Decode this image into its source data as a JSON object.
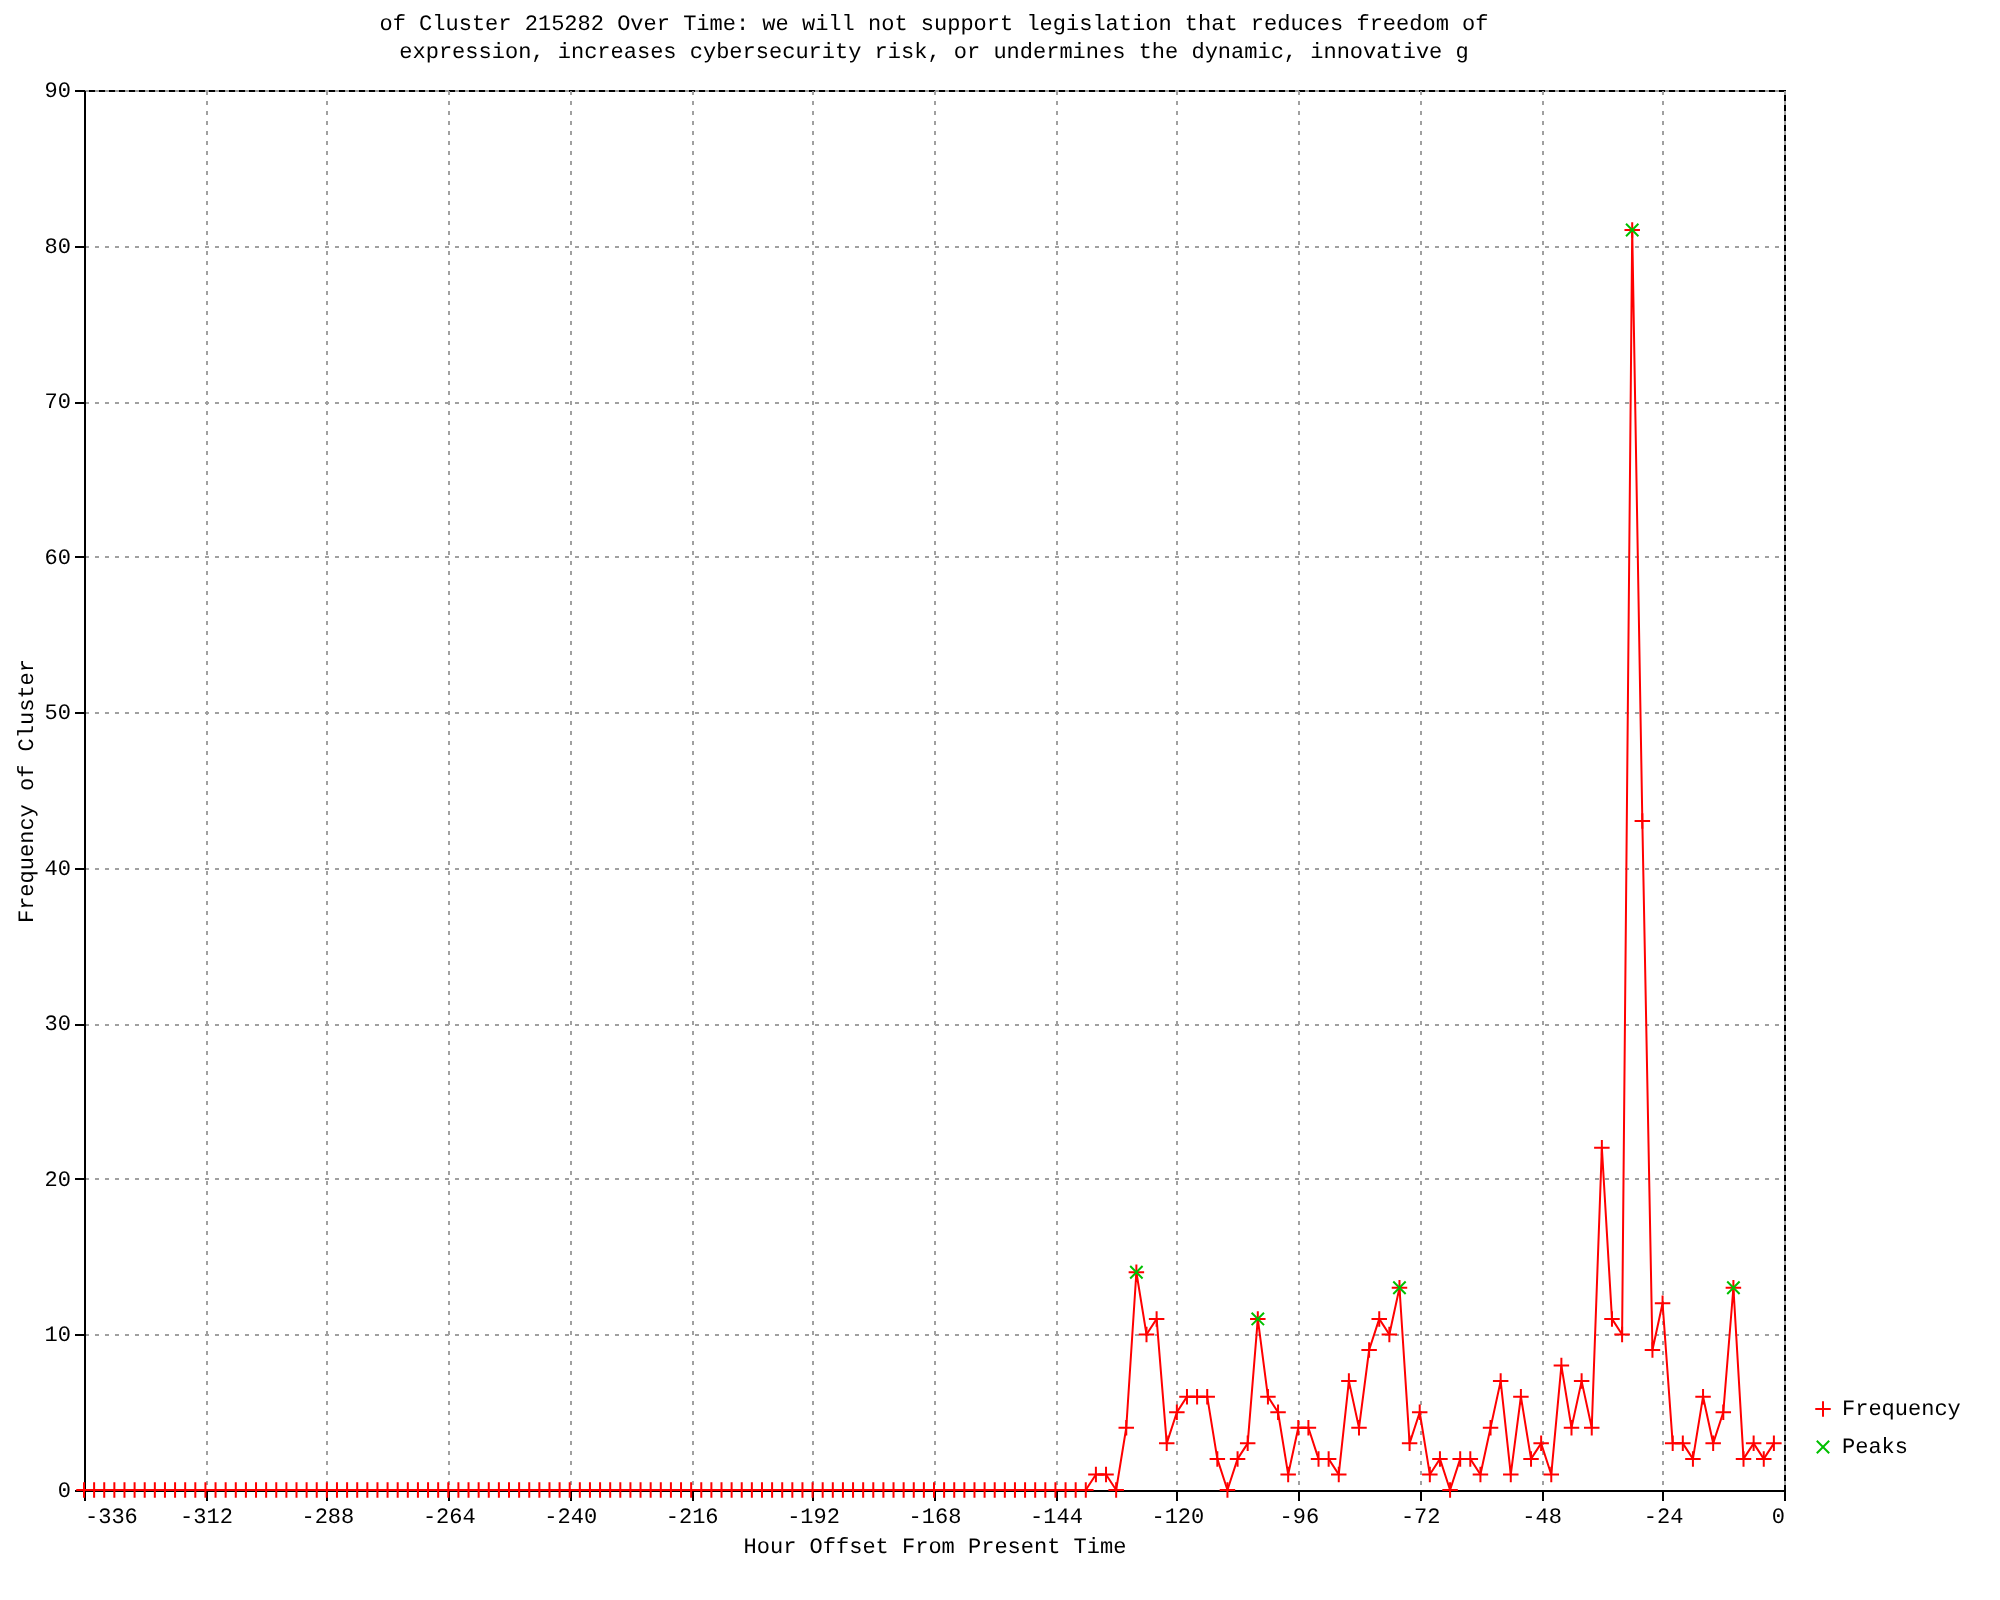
{
  "chart_data": {
    "type": "line",
    "title": "of Cluster 215282 Over Time: we will not support legislation that reduces freedom of expression, increases cybersecurity risk, or undermines the dynamic, innovative g",
    "xlabel": "Hour Offset From Present Time",
    "ylabel": "Frequency of Cluster",
    "x": [
      -336,
      -334,
      -332,
      -330,
      -328,
      -326,
      -324,
      -322,
      -320,
      -318,
      -316,
      -314,
      -312,
      -310,
      -308,
      -306,
      -304,
      -302,
      -300,
      -298,
      -296,
      -294,
      -292,
      -290,
      -288,
      -286,
      -284,
      -282,
      -280,
      -278,
      -276,
      -274,
      -272,
      -270,
      -268,
      -266,
      -264,
      -262,
      -260,
      -258,
      -256,
      -254,
      -252,
      -250,
      -248,
      -246,
      -244,
      -242,
      -240,
      -238,
      -236,
      -234,
      -232,
      -230,
      -228,
      -226,
      -224,
      -222,
      -220,
      -218,
      -216,
      -214,
      -212,
      -210,
      -208,
      -206,
      -204,
      -202,
      -200,
      -198,
      -196,
      -194,
      -192,
      -190,
      -188,
      -186,
      -184,
      -182,
      -180,
      -178,
      -176,
      -174,
      -172,
      -170,
      -168,
      -166,
      -164,
      -162,
      -160,
      -158,
      -156,
      -154,
      -152,
      -150,
      -148,
      -146,
      -144,
      -142,
      -140,
      -138,
      -136,
      -134,
      -132,
      -130,
      -128,
      -126,
      -124,
      -122,
      -120,
      -118,
      -116,
      -114,
      -112,
      -110,
      -108,
      -106,
      -104,
      -102,
      -100,
      -98,
      -96,
      -94,
      -92,
      -90,
      -88,
      -86,
      -84,
      -82,
      -80,
      -78,
      -76,
      -74,
      -72,
      -70,
      -68,
      -66,
      -64,
      -62,
      -60,
      -58,
      -56,
      -54,
      -52,
      -50,
      -48,
      -46,
      -44,
      -42,
      -40,
      -38,
      -36,
      -34,
      -32,
      -30,
      -28,
      -26,
      -24,
      -22,
      -20,
      -18,
      -16,
      -14,
      -12,
      -10,
      -8,
      -6,
      -4,
      -2
    ],
    "series": [
      {
        "name": "Frequency",
        "color": "#ff0000",
        "values": [
          0,
          0,
          0,
          0,
          0,
          0,
          0,
          0,
          0,
          0,
          0,
          0,
          0,
          0,
          0,
          0,
          0,
          0,
          0,
          0,
          0,
          0,
          0,
          0,
          0,
          0,
          0,
          0,
          0,
          0,
          0,
          0,
          0,
          0,
          0,
          0,
          0,
          0,
          0,
          0,
          0,
          0,
          0,
          0,
          0,
          0,
          0,
          0,
          0,
          0,
          0,
          0,
          0,
          0,
          0,
          0,
          0,
          0,
          0,
          0,
          0,
          0,
          0,
          0,
          0,
          0,
          0,
          0,
          0,
          0,
          0,
          0,
          0,
          0,
          0,
          0,
          0,
          0,
          0,
          0,
          0,
          0,
          0,
          0,
          0,
          0,
          0,
          0,
          0,
          0,
          0,
          0,
          0,
          0,
          0,
          0,
          0,
          0,
          0,
          0,
          1,
          1,
          0,
          4,
          14,
          10,
          11,
          3,
          5,
          6,
          6,
          6,
          2,
          0,
          2,
          3,
          11,
          6,
          5,
          1,
          4,
          4,
          2,
          2,
          1,
          7,
          4,
          9,
          11,
          10,
          13,
          3,
          5,
          1,
          2,
          0,
          2,
          2,
          1,
          4,
          7,
          1,
          6,
          2,
          3,
          1,
          8,
          4,
          7,
          4,
          22,
          11,
          10,
          81,
          43,
          9,
          12,
          3,
          3,
          2,
          6,
          3,
          5,
          13,
          2,
          3,
          2,
          3
        ]
      },
      {
        "name": "Peaks",
        "type": "scatter",
        "color": "#00c000",
        "x": [
          -128,
          -104,
          -76,
          -30,
          -10
        ],
        "values": [
          14,
          11,
          13,
          81,
          13
        ]
      }
    ],
    "xlim": [
      -336,
      0
    ],
    "xticks": [
      -336,
      -312,
      -288,
      -264,
      -240,
      -216,
      -192,
      -168,
      -144,
      -120,
      -96,
      -72,
      -48,
      -24,
      0
    ],
    "ylim": [
      0,
      90
    ],
    "yticks": [
      0,
      10,
      20,
      30,
      40,
      50,
      60,
      70,
      80,
      90
    ],
    "grid": true,
    "legend": "bottom right",
    "marker": "cross",
    "line_style": "solid"
  }
}
